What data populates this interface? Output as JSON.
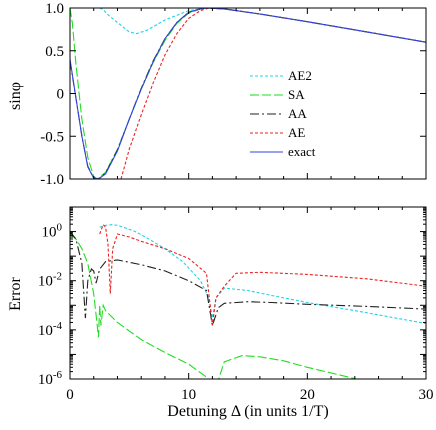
{
  "chart_data": [
    {
      "type": "line",
      "ylabel": "sinφ",
      "xlabel": "",
      "xlim": [
        0,
        30
      ],
      "ylim": [
        -1,
        1
      ],
      "xticks": [
        0,
        10,
        20,
        30
      ],
      "yticks": [
        -1,
        -0.5,
        0,
        0.5,
        1
      ],
      "ytick_labels": [
        "-1.0",
        "-0.5",
        "0",
        "0.5",
        "1.0"
      ],
      "legend": {
        "placement": "right-center"
      },
      "series": [
        {
          "name": "AE2",
          "color": "#22d3e8",
          "dash": "3,2",
          "x": [
            2.5,
            2.8,
            3.2,
            4.0,
            5.0,
            5.6,
            6.5,
            8.0,
            10.0,
            11.5,
            13.0,
            16.0,
            20.0,
            25.0,
            30.0
          ],
          "y": [
            1.0,
            0.98,
            0.92,
            0.83,
            0.72,
            0.7,
            0.74,
            0.86,
            0.97,
            1.0,
            0.99,
            0.93,
            0.84,
            0.72,
            0.6
          ]
        },
        {
          "name": "SA",
          "color": "#22dd22",
          "dash": "9,3",
          "x": [
            0.0,
            0.2,
            0.5,
            1.0,
            1.5,
            2.0,
            2.3,
            3.0,
            4.0,
            5.0,
            6.0,
            7.0,
            8.0,
            9.0,
            10.0,
            11.0,
            11.5,
            13.0,
            16.0,
            20.0,
            25.0,
            30.0
          ],
          "y": [
            1.0,
            0.82,
            0.35,
            -0.3,
            -0.75,
            -0.97,
            -1.0,
            -0.92,
            -0.65,
            -0.3,
            0.05,
            0.36,
            0.62,
            0.82,
            0.94,
            0.99,
            1.0,
            0.99,
            0.93,
            0.84,
            0.72,
            0.6
          ]
        },
        {
          "name": "AA",
          "color": "#222222",
          "dash": "9,3,2,3",
          "x": [
            0.0,
            0.5,
            1.0,
            1.5,
            2.0,
            2.4,
            3.0,
            4.0,
            5.0,
            6.0,
            7.0,
            8.0,
            9.0,
            10.0,
            11.0,
            11.5,
            13.0,
            16.0,
            20.0,
            25.0,
            30.0
          ],
          "y": [
            0.38,
            -0.05,
            -0.5,
            -0.85,
            -0.99,
            -1.0,
            -0.93,
            -0.66,
            -0.3,
            0.06,
            0.38,
            0.64,
            0.83,
            0.95,
            0.99,
            1.0,
            0.99,
            0.93,
            0.84,
            0.72,
            0.6
          ]
        },
        {
          "name": "AE",
          "color": "#ee2222",
          "dash": "3,2",
          "x": [
            4.3,
            4.6,
            5.0,
            5.5,
            6.0,
            7.0,
            8.0,
            9.0,
            10.0,
            11.0,
            11.7,
            13.0,
            16.0,
            20.0,
            25.0,
            30.0
          ],
          "y": [
            -1.0,
            -0.85,
            -0.65,
            -0.45,
            -0.25,
            0.12,
            0.45,
            0.7,
            0.88,
            0.97,
            1.0,
            0.99,
            0.93,
            0.84,
            0.72,
            0.6
          ]
        },
        {
          "name": "exact",
          "color": "#3344dd",
          "dash": "",
          "x": [
            0.0,
            0.5,
            1.0,
            1.5,
            2.0,
            2.4,
            3.0,
            4.0,
            5.0,
            6.0,
            7.0,
            8.0,
            9.0,
            10.0,
            11.0,
            11.5,
            13.0,
            16.0,
            20.0,
            25.0,
            30.0
          ],
          "y": [
            0.4,
            -0.05,
            -0.5,
            -0.86,
            -0.99,
            -1.0,
            -0.94,
            -0.67,
            -0.3,
            0.05,
            0.37,
            0.64,
            0.83,
            0.95,
            0.99,
            1.0,
            0.99,
            0.93,
            0.84,
            0.72,
            0.6
          ]
        }
      ]
    },
    {
      "type": "line",
      "ylabel": "Error",
      "xlabel": "Detuning Δ (in units 1/T)",
      "xlim": [
        0,
        30
      ],
      "ylim": [
        1e-06,
        10
      ],
      "yscale": "log",
      "xticks": [
        0,
        10,
        20,
        30
      ],
      "yticks": [
        1e-06,
        0.0001,
        0.01,
        1
      ],
      "series": [
        {
          "name": "AE2",
          "color": "#22d3e8",
          "dash": "3,2",
          "x": [
            2.5,
            3.0,
            3.5,
            4.0,
            4.5,
            5.5,
            6.5,
            8.0,
            9.5,
            11.0,
            11.7,
            12.0,
            12.3,
            13.0,
            15.0,
            17.0,
            20.0,
            25.0,
            30.0
          ],
          "y": [
            1.5,
            1.8,
            1.9,
            1.8,
            1.5,
            1.0,
            0.55,
            0.2,
            0.06,
            0.01,
            0.002,
            0.0003,
            0.002,
            0.005,
            0.004,
            0.0025,
            0.0013,
            0.0005,
            0.00018
          ]
        },
        {
          "name": "SA",
          "color": "#22dd22",
          "dash": "9,3",
          "x": [
            0.0,
            0.5,
            1.0,
            1.5,
            2.0,
            2.2,
            2.4,
            2.5,
            2.6,
            2.8,
            3.0,
            4.0,
            6.0,
            8.0,
            10.0,
            11.5,
            12.0,
            12.5,
            13.0,
            14.5,
            16.0,
            18.0,
            20.0,
            25.0,
            30.0
          ],
          "y": [
            0.8,
            0.5,
            0.2,
            0.05,
            0.003,
            0.0004,
            5e-05,
            0.001,
            0.00015,
            0.001,
            0.0006,
            0.0002,
            4e-05,
            1.2e-05,
            4e-06,
            1.2e-06,
            2.5e-07,
            9e-07,
            5e-06,
            9e-06,
            8e-06,
            5.5e-06,
            3e-06,
            8e-07,
            1.8e-07
          ]
        },
        {
          "name": "AA",
          "color": "#222222",
          "dash": "9,3,2,3",
          "x": [
            0.0,
            0.5,
            1.0,
            1.3,
            1.5,
            1.8,
            2.0,
            2.2,
            2.5,
            3.0,
            4.0,
            6.0,
            8.0,
            10.0,
            11.5,
            12.0,
            12.5,
            13.0,
            15.0,
            17.0,
            20.0,
            25.0,
            30.0
          ],
          "y": [
            1.0,
            0.5,
            0.05,
            0.0003,
            0.01,
            0.03,
            0.025,
            0.008,
            0.03,
            0.06,
            0.07,
            0.045,
            0.025,
            0.01,
            0.004,
            0.00015,
            0.0008,
            0.0012,
            0.0014,
            0.0013,
            0.0011,
            0.0009,
            0.0007
          ]
        },
        {
          "name": "AE",
          "color": "#ee2222",
          "dash": "3,2",
          "x": [
            2.5,
            2.8,
            3.0,
            3.2,
            3.4,
            3.6,
            4.0,
            5.0,
            6.0,
            8.0,
            10.0,
            11.5,
            12.0,
            12.3,
            13.0,
            14.0,
            16.0,
            20.0,
            25.0,
            30.0
          ],
          "y": [
            0.8,
            1.9,
            1.5,
            0.3,
            0.003,
            0.2,
            0.8,
            0.6,
            0.4,
            0.2,
            0.08,
            0.02,
            0.00015,
            0.002,
            0.006,
            0.02,
            0.022,
            0.018,
            0.012,
            0.006
          ]
        }
      ]
    }
  ]
}
